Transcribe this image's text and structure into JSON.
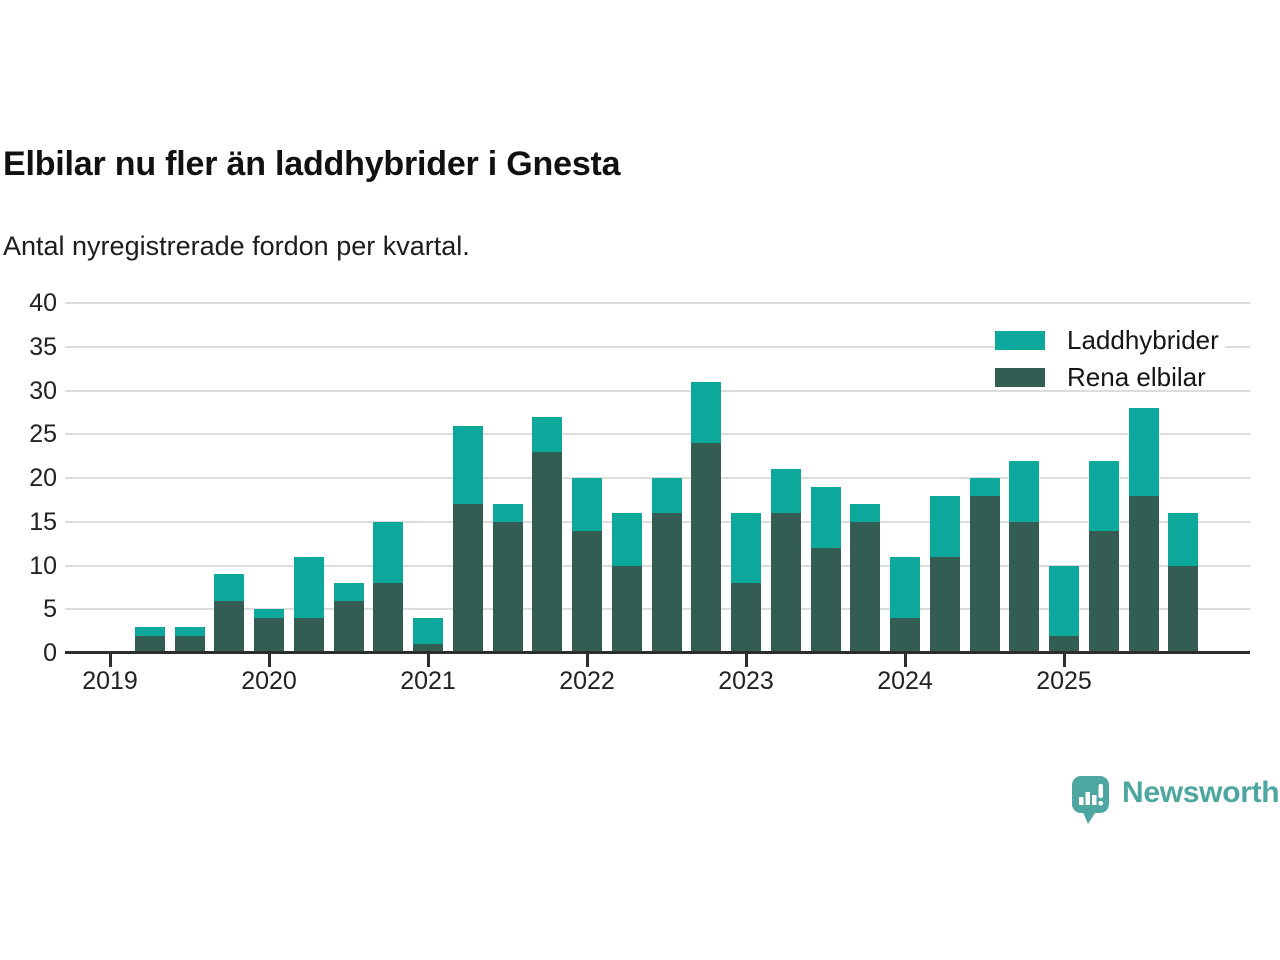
{
  "title": "Elbilar nu fler än laddhybrider i Gnesta",
  "subtitle": "Antal nyregistrerade fordon per kvartal.",
  "legend": {
    "items": [
      {
        "label": "Laddhybrider",
        "color": "#0ca89b"
      },
      {
        "label": "Rena elbilar",
        "color": "#335c53"
      }
    ]
  },
  "branding": {
    "name": "Newsworthy",
    "color": "#4ea6a0"
  },
  "chart_data": {
    "type": "bar",
    "stacked": true,
    "title": "Elbilar nu fler än laddhybrider i Gnesta",
    "subtitle": "Antal nyregistrerade fordon per kvartal.",
    "xlabel": "",
    "ylabel": "",
    "ylim": [
      0,
      40
    ],
    "yticks": [
      0,
      5,
      10,
      15,
      20,
      25,
      30,
      35,
      40
    ],
    "year_ticks": [
      "2019",
      "2020",
      "2021",
      "2022",
      "2023",
      "2024",
      "2025"
    ],
    "categories": [
      "2019 Q1",
      "2019 Q2",
      "2019 Q3",
      "2019 Q4",
      "2020 Q1",
      "2020 Q2",
      "2020 Q3",
      "2020 Q4",
      "2021 Q1",
      "2021 Q2",
      "2021 Q3",
      "2021 Q4",
      "2022 Q1",
      "2022 Q2",
      "2022 Q3",
      "2022 Q4",
      "2023 Q1",
      "2023 Q2",
      "2023 Q3",
      "2023 Q4",
      "2024 Q1",
      "2024 Q2",
      "2024 Q3",
      "2024 Q4",
      "2025 Q1",
      "2025 Q2",
      "2025 Q3",
      "2025 Q4"
    ],
    "series": [
      {
        "name": "Laddhybrider",
        "color": "#0ca89b",
        "stack_position": "top",
        "values": [
          0,
          1,
          1,
          3,
          1,
          7,
          2,
          7,
          3,
          9,
          2,
          4,
          6,
          6,
          4,
          7,
          8,
          5,
          7,
          2,
          7,
          7,
          2,
          7,
          8,
          8,
          10,
          6
        ]
      },
      {
        "name": "Rena elbilar",
        "color": "#335c53",
        "stack_position": "bottom",
        "values": [
          0,
          2,
          2,
          6,
          4,
          4,
          6,
          8,
          1,
          17,
          15,
          23,
          14,
          10,
          16,
          24,
          8,
          16,
          12,
          15,
          4,
          11,
          18,
          15,
          2,
          14,
          18,
          10
        ]
      }
    ],
    "totals": [
      0,
      3,
      3,
      9,
      5,
      11,
      8,
      15,
      4,
      26,
      17,
      27,
      20,
      16,
      20,
      31,
      16,
      21,
      19,
      17,
      11,
      18,
      20,
      22,
      10,
      22,
      28,
      16
    ],
    "grid": "horizontal",
    "legend_position": "top-right"
  }
}
